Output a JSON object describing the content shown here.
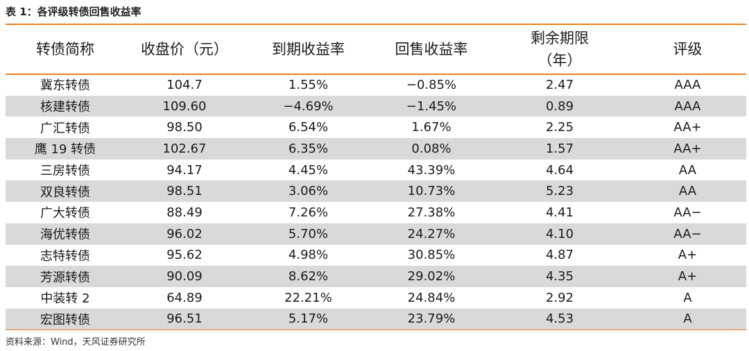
{
  "caption": "表 1：各评级转债回售收益率",
  "columns": [
    "转债简称",
    "收盘价（元）",
    "到期收益率",
    "回售收益率",
    "剩余期限\n（年）",
    "评级"
  ],
  "rows": [
    [
      "冀东转债",
      "104.7",
      "1.55%",
      "−0.85%",
      "2.47",
      "AAA"
    ],
    [
      "核建转债",
      "109.60",
      "−4.69%",
      "−1.45%",
      "0.89",
      "AAA"
    ],
    [
      "广汇转债",
      "98.50",
      "6.54%",
      "1.67%",
      "2.25",
      "AA+"
    ],
    [
      "鹰 19 转债",
      "102.67",
      "6.35%",
      "0.08%",
      "1.57",
      "AA+"
    ],
    [
      "三房转债",
      "94.17",
      "4.45%",
      "43.39%",
      "4.64",
      "AA"
    ],
    [
      "双良转债",
      "98.51",
      "3.06%",
      "10.73%",
      "5.23",
      "AA"
    ],
    [
      "广大转债",
      "88.49",
      "7.26%",
      "27.38%",
      "4.41",
      "AA−"
    ],
    [
      "海优转债",
      "96.02",
      "5.70%",
      "24.27%",
      "4.10",
      "AA−"
    ],
    [
      "志特转债",
      "95.62",
      "4.98%",
      "30.85%",
      "4.87",
      "A+"
    ],
    [
      "芳源转债",
      "90.09",
      "8.62%",
      "29.02%",
      "4.35",
      "A+"
    ],
    [
      "中装转 2",
      "64.89",
      "22.21%",
      "24.84%",
      "2.92",
      "A"
    ],
    [
      "宏图转债",
      "96.51",
      "5.17%",
      "23.79%",
      "4.53",
      "A"
    ]
  ],
  "source": "资料来源：Wind，天风证券研究所",
  "colors": {
    "rule": "#e8801e",
    "shaded_row": "#d9d9d9"
  }
}
